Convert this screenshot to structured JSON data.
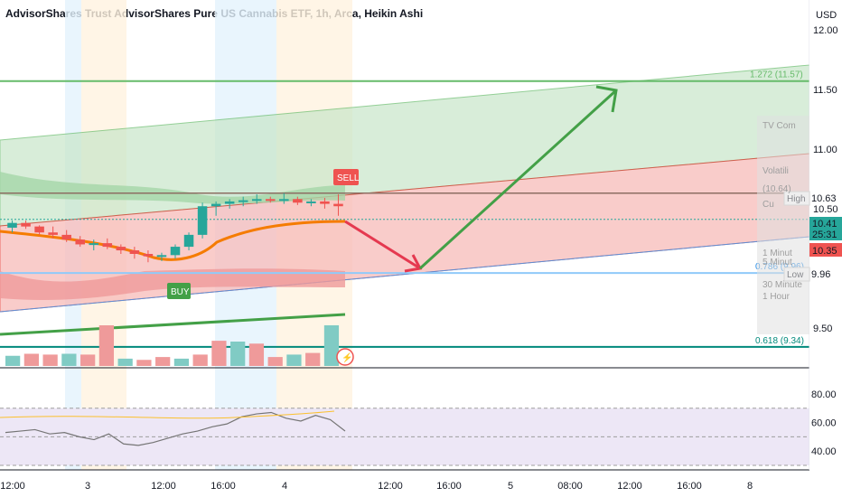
{
  "title": "AdvisorShares Trust AdvisorShares Pure US Cannabis ETF, 1h, Arca, Heikin Ashi",
  "currency": "USD",
  "colors": {
    "up": "#26a69a",
    "down": "#ef5350",
    "orange": "#f57c00",
    "green_line": "#43a047",
    "red_line": "#e53935",
    "rsi_line": "#757575",
    "rsi_bg": "#ede7f6"
  },
  "chart_data": {
    "type": "candlestick",
    "price_axis": {
      "ticks": [
        "12.00",
        "11.50",
        "11.00",
        "10.50",
        "9.50"
      ],
      "range": [
        9.18,
        12.25
      ]
    },
    "time_axis": {
      "ticks": [
        "12:00",
        "3",
        "12:00",
        "16:00",
        "4",
        "12:00",
        "16:00",
        "5",
        "08:00",
        "12:00",
        "16:00",
        "8"
      ]
    },
    "candles_ohlc": [
      [
        10.34,
        10.4,
        10.3,
        10.38
      ],
      [
        10.38,
        10.4,
        10.33,
        10.35
      ],
      [
        10.35,
        10.36,
        10.28,
        10.3
      ],
      [
        10.3,
        10.35,
        10.25,
        10.28
      ],
      [
        10.28,
        10.32,
        10.22,
        10.24
      ],
      [
        10.24,
        10.27,
        10.18,
        10.2
      ],
      [
        10.2,
        10.24,
        10.15,
        10.21
      ],
      [
        10.21,
        10.25,
        10.16,
        10.18
      ],
      [
        10.18,
        10.2,
        10.12,
        10.15
      ],
      [
        10.15,
        10.18,
        10.08,
        10.12
      ],
      [
        10.12,
        10.15,
        10.05,
        10.1
      ],
      [
        10.1,
        10.13,
        10.06,
        10.11
      ],
      [
        10.11,
        10.2,
        10.08,
        10.18
      ],
      [
        10.18,
        10.3,
        10.15,
        10.28
      ],
      [
        10.28,
        10.55,
        10.25,
        10.52
      ],
      [
        10.52,
        10.56,
        10.44,
        10.54
      ],
      [
        10.54,
        10.58,
        10.5,
        10.56
      ],
      [
        10.56,
        10.6,
        10.52,
        10.57
      ],
      [
        10.57,
        10.62,
        10.54,
        10.58
      ],
      [
        10.58,
        10.6,
        10.55,
        10.57
      ],
      [
        10.57,
        10.63,
        10.54,
        10.58
      ],
      [
        10.58,
        10.6,
        10.53,
        10.55
      ],
      [
        10.55,
        10.58,
        10.52,
        10.56
      ],
      [
        10.56,
        10.59,
        10.5,
        10.54
      ],
      [
        10.54,
        10.62,
        10.44,
        10.52
      ]
    ],
    "levels": [
      {
        "label": "1.272 (11.57)",
        "price": 11.57,
        "color": "#66bb6a"
      },
      {
        "label": "0.786 (9.96)",
        "price": 9.96,
        "color": "#90caf9"
      },
      {
        "label": "0.618 (9.34)",
        "price": 9.34,
        "color": "#00897b"
      },
      {
        "label": "High",
        "price": 10.63,
        "color": "#8d6e63"
      }
    ],
    "price_labels": [
      {
        "value": "10.63",
        "side_label": "High"
      },
      {
        "value": "10.41",
        "countdown": "25:31",
        "color": "#26a69a"
      },
      {
        "value": "10.35",
        "color": "#ef5350"
      },
      {
        "value": "9.96",
        "side_label": "Low"
      }
    ],
    "signals": [
      {
        "label": "SELL",
        "color": "#ef5350"
      },
      {
        "label": "BUY",
        "color": "#43a047"
      }
    ],
    "volume": [
      0.25,
      0.3,
      0.28,
      0.3,
      0.28,
      1.0,
      0.18,
      0.15,
      0.22,
      0.18,
      0.28,
      0.62,
      0.6,
      0.55,
      0.22,
      0.28,
      0.32,
      1.0
    ],
    "rsi": {
      "ticks": [
        "80.00",
        "60.00",
        "40.00"
      ],
      "values": [
        53,
        54,
        55,
        52,
        53,
        50,
        48,
        52,
        45,
        44,
        46,
        49,
        52,
        54,
        57,
        59,
        64,
        66,
        67,
        63,
        61,
        65,
        62,
        54
      ]
    },
    "legend_fragments": [
      "TV Com",
      "Volatili",
      "(10.64)",
      "Cu",
      "1 Minut",
      "5 Minut",
      "30 Minute",
      "1 Hour"
    ]
  }
}
